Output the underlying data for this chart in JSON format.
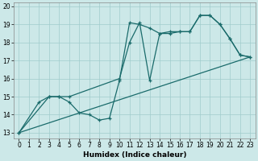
{
  "xlabel": "Humidex (Indice chaleur)",
  "background_color": "#cce8e8",
  "line_color": "#1a6b6b",
  "xlim": [
    -0.5,
    23.5
  ],
  "ylim": [
    12.7,
    20.2
  ],
  "xticks": [
    0,
    1,
    2,
    3,
    4,
    5,
    6,
    7,
    8,
    9,
    10,
    11,
    12,
    13,
    14,
    15,
    16,
    17,
    18,
    19,
    20,
    21,
    22,
    23
  ],
  "yticks": [
    13,
    14,
    15,
    16,
    17,
    18,
    19,
    20
  ],
  "line1_x": [
    0,
    2,
    3,
    4,
    5,
    6,
    7,
    8,
    9,
    10,
    11,
    12,
    13,
    14,
    15,
    16,
    17,
    18,
    19,
    20,
    21,
    22,
    23
  ],
  "line1_y": [
    13,
    14.7,
    15.0,
    15.0,
    14.7,
    14.1,
    14.0,
    13.7,
    13.8,
    15.9,
    19.1,
    19.0,
    18.8,
    18.5,
    18.6,
    18.6,
    18.6,
    19.5,
    19.5,
    19.0,
    18.2,
    17.3,
    17.2
  ],
  "line2_x": [
    0,
    3,
    4,
    5,
    10,
    11,
    12,
    13,
    14,
    15,
    16,
    17,
    18,
    19,
    20,
    21,
    22,
    23
  ],
  "line2_y": [
    13,
    15.0,
    15.0,
    15.0,
    16.0,
    18.0,
    19.1,
    15.9,
    18.5,
    18.5,
    18.6,
    18.6,
    19.5,
    19.5,
    19.0,
    18.2,
    17.3,
    17.2
  ],
  "line3_x": [
    0,
    23
  ],
  "line3_y": [
    13,
    17.2
  ],
  "tick_fontsize": 5.5,
  "xlabel_fontsize": 6.5
}
